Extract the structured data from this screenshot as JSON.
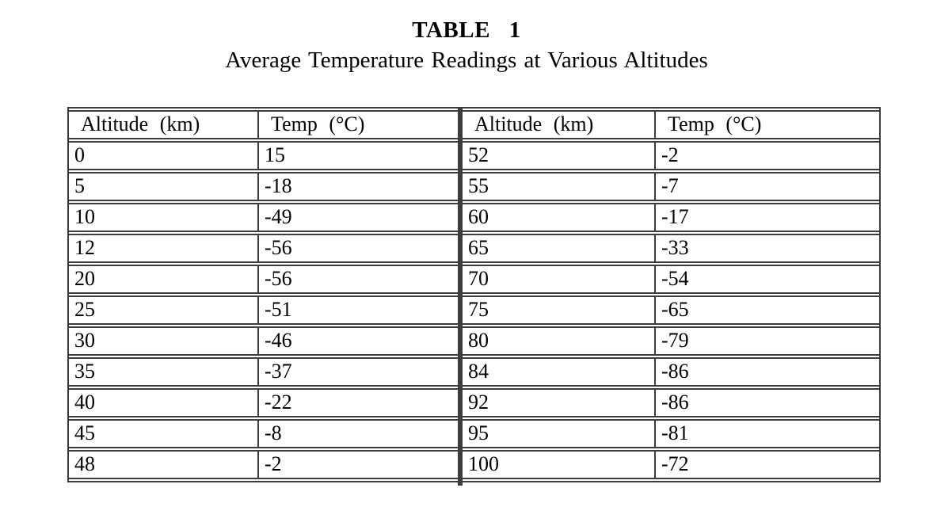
{
  "page": {
    "title": "TABLE 1",
    "subtitle": "Average Temperature Readings at Various Altitudes"
  },
  "tables": [
    {
      "name": "left",
      "headers": [
        "Altitude (km)",
        "Temp (°C)"
      ],
      "rows": [
        [
          0,
          15
        ],
        [
          5,
          -18
        ],
        [
          10,
          -49
        ],
        [
          12,
          -56
        ],
        [
          20,
          -56
        ],
        [
          25,
          -51
        ],
        [
          30,
          -46
        ],
        [
          35,
          -37
        ],
        [
          40,
          -22
        ],
        [
          45,
          -8
        ],
        [
          48,
          -2
        ]
      ]
    },
    {
      "name": "right",
      "headers": [
        "Altitude (km)",
        "Temp (°C)"
      ],
      "rows": [
        [
          52,
          -2
        ],
        [
          55,
          -7
        ],
        [
          60,
          -17
        ],
        [
          65,
          -33
        ],
        [
          70,
          -54
        ],
        [
          75,
          -65
        ],
        [
          80,
          -79
        ],
        [
          84,
          -86
        ],
        [
          92,
          -86
        ],
        [
          95,
          -81
        ],
        [
          100,
          -72
        ]
      ]
    }
  ],
  "chart_data": {
    "type": "table",
    "title": "TABLE 1",
    "subtitle": "Average Temperature Readings at Various Altitudes",
    "columns": [
      "Altitude (km)",
      "Temp (°C)",
      "Altitude (km)",
      "Temp (°C)"
    ],
    "altitude_km": [
      0,
      5,
      10,
      12,
      20,
      25,
      30,
      35,
      40,
      45,
      48,
      52,
      55,
      60,
      65,
      70,
      75,
      80,
      84,
      92,
      95,
      100
    ],
    "temp_c": [
      15,
      -18,
      -49,
      -56,
      -56,
      -51,
      -46,
      -37,
      -22,
      -8,
      -2,
      -2,
      -7,
      -17,
      -33,
      -54,
      -65,
      -79,
      -86,
      -86,
      -81,
      -72
    ]
  }
}
